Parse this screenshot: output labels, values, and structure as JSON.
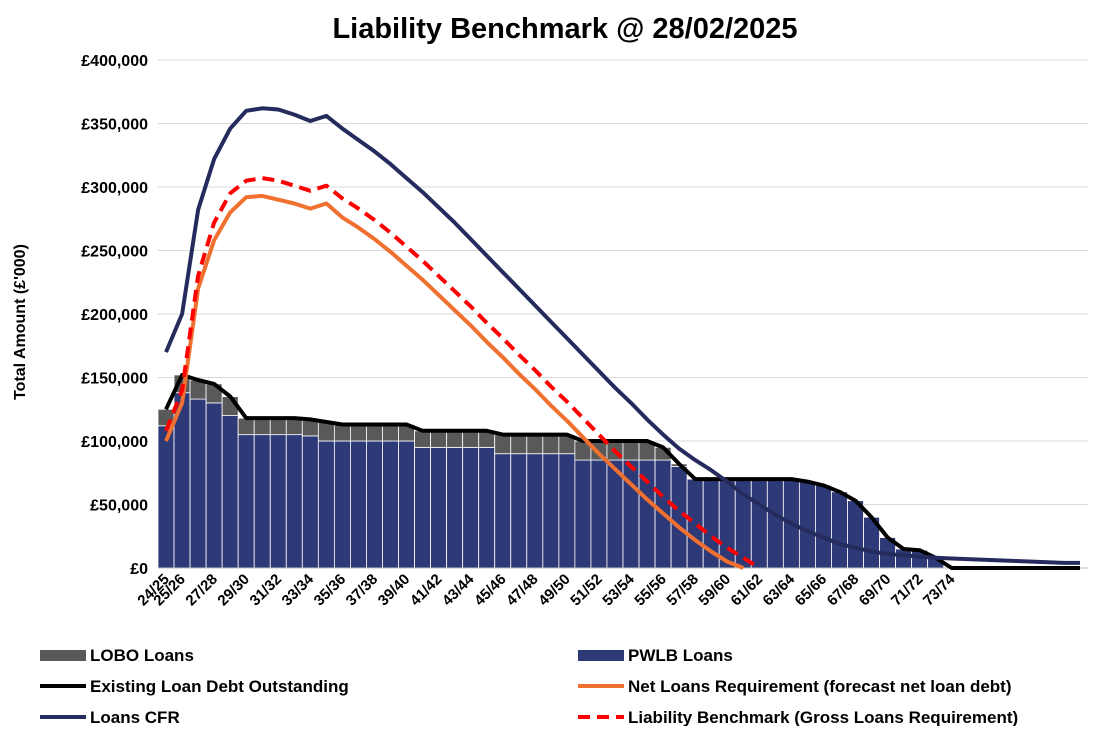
{
  "chart_data": {
    "type": "bar",
    "title": "Liability Benchmark @ 28/02/2025",
    "y_label": "Total Amount (£'000)",
    "grid": true,
    "categories": [
      "24/25",
      "25/26",
      null,
      "27/28",
      null,
      "29/30",
      null,
      "31/32",
      null,
      "33/34",
      null,
      "35/36",
      null,
      "37/38",
      null,
      "39/40",
      null,
      "41/42",
      null,
      "43/44",
      null,
      "45/46",
      null,
      "47/48",
      null,
      "49/50",
      null,
      "51/52",
      null,
      "53/54",
      null,
      "55/56",
      null,
      "57/58",
      null,
      "59/60",
      null,
      "61/62",
      null,
      "63/64",
      null,
      "65/66",
      null,
      "67/68",
      null,
      "69/70",
      null,
      "71/72",
      null,
      "73/74",
      null,
      null,
      null,
      null,
      null,
      null,
      null,
      null
    ],
    "ylim": [
      0,
      400000
    ],
    "yticks": [
      {
        "value": 0,
        "label": "£0"
      },
      {
        "value": 50000,
        "label": "£50,000"
      },
      {
        "value": 100000,
        "label": "£100,000"
      },
      {
        "value": 150000,
        "label": "£150,000"
      },
      {
        "value": 200000,
        "label": "£200,000"
      },
      {
        "value": 250000,
        "label": "£250,000"
      },
      {
        "value": 300000,
        "label": "£300,000"
      },
      {
        "value": 350000,
        "label": "£350,000"
      },
      {
        "value": 400000,
        "label": "£400,000"
      }
    ],
    "series": [
      {
        "name": "LOBO Loans",
        "type": "bar",
        "color": "#595959",
        "values": [
          13000,
          14000,
          15000,
          15000,
          15000,
          13000,
          13000,
          13000,
          13000,
          13000,
          15000,
          13000,
          13000,
          13000,
          13000,
          13000,
          13000,
          13000,
          13000,
          13000,
          13000,
          15000,
          15000,
          15000,
          15000,
          15000,
          15000,
          15000,
          15000,
          15000,
          15000,
          10000,
          2000,
          0,
          0,
          0,
          0,
          0,
          0,
          0,
          0,
          0,
          0,
          0,
          0,
          0,
          0,
          0,
          0,
          0,
          0,
          0,
          0,
          0,
          0,
          0,
          0,
          0
        ]
      },
      {
        "name": "PWLB Loans",
        "type": "bar",
        "color": "#2e3a78",
        "values": [
          112000,
          138000,
          133000,
          130000,
          120000,
          105000,
          105000,
          105000,
          105000,
          104000,
          100000,
          100000,
          100000,
          100000,
          100000,
          100000,
          95000,
          95000,
          95000,
          95000,
          95000,
          90000,
          90000,
          90000,
          90000,
          90000,
          85000,
          85000,
          85000,
          85000,
          85000,
          85000,
          80000,
          70000,
          70000,
          70000,
          70000,
          70000,
          70000,
          70000,
          68000,
          65000,
          60000,
          53000,
          40000,
          24000,
          15000,
          14000,
          8000,
          0,
          0,
          0,
          0,
          0,
          0,
          0,
          0,
          0
        ]
      },
      {
        "name": "Existing Loan Debt Outstanding",
        "type": "line",
        "color": "#000000",
        "values": [
          125000,
          152000,
          148000,
          145000,
          135000,
          118000,
          118000,
          118000,
          118000,
          117000,
          115000,
          113000,
          113000,
          113000,
          113000,
          113000,
          108000,
          108000,
          108000,
          108000,
          108000,
          105000,
          105000,
          105000,
          105000,
          105000,
          100000,
          100000,
          100000,
          100000,
          100000,
          95000,
          82000,
          70000,
          70000,
          70000,
          70000,
          70000,
          70000,
          70000,
          68000,
          65000,
          60000,
          53000,
          40000,
          24000,
          15000,
          14000,
          8000,
          0,
          0,
          0,
          0,
          0,
          0,
          0,
          0,
          0
        ]
      },
      {
        "name": "Net Loans Requirement (forecast net loan debt)",
        "type": "line",
        "color": "#f07030",
        "values": [
          100000,
          130000,
          220000,
          258000,
          280000,
          292000,
          293000,
          290000,
          287000,
          283000,
          287000,
          276000,
          268000,
          259000,
          249000,
          238000,
          227000,
          215000,
          203000,
          191000,
          178000,
          166000,
          153000,
          141000,
          128000,
          116000,
          103000,
          90000,
          78000,
          66000,
          54000,
          43000,
          32000,
          22000,
          13000,
          5000,
          0,
          null,
          null,
          null,
          null,
          null,
          null,
          null,
          null,
          null,
          null,
          null,
          null,
          null,
          null,
          null,
          null,
          null,
          null,
          null,
          null,
          null
        ]
      },
      {
        "name": "Loans CFR",
        "type": "line",
        "color": "#262b5e",
        "values": [
          170000,
          200000,
          282000,
          322000,
          346000,
          360000,
          362000,
          361000,
          357000,
          352000,
          356000,
          346000,
          337000,
          328000,
          318000,
          307000,
          296000,
          284000,
          272000,
          259000,
          246000,
          233000,
          220000,
          207000,
          194000,
          181000,
          168000,
          155000,
          142000,
          130000,
          117000,
          105000,
          94000,
          85000,
          77000,
          68000,
          58000,
          50000,
          42000,
          35000,
          29000,
          24000,
          19000,
          16000,
          13000,
          11000,
          10000,
          9000,
          8000,
          7500,
          7000,
          6500,
          6000,
          5500,
          5000,
          4500,
          4000,
          4000
        ]
      },
      {
        "name": "Liability Benchmark (Gross Loans Requirement)",
        "type": "line",
        "dashed": true,
        "color": "#ff0000",
        "values": [
          108000,
          140000,
          230000,
          272000,
          295000,
          305000,
          307000,
          305000,
          301000,
          297000,
          301000,
          291000,
          283000,
          274000,
          264000,
          253000,
          242000,
          230000,
          218000,
          206000,
          193000,
          181000,
          168000,
          156000,
          143000,
          131000,
          118000,
          105000,
          92000,
          80000,
          68000,
          56000,
          45000,
          35000,
          25000,
          16000,
          8000,
          0,
          null,
          null,
          null,
          null,
          null,
          null,
          null,
          null,
          null,
          null,
          null,
          null,
          null,
          null,
          null,
          null,
          null,
          null,
          null,
          null
        ]
      }
    ]
  }
}
